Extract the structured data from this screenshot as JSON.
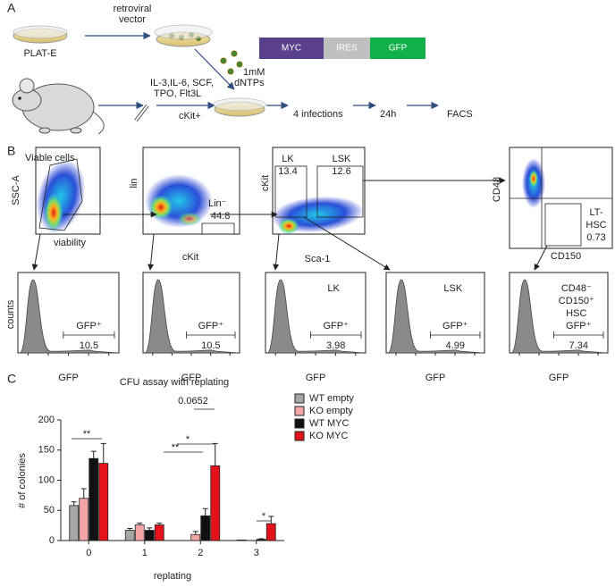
{
  "panel_a": {
    "label": "A",
    "retroviral_vector": [
      "retroviral",
      "vector"
    ],
    "plat_e": "PLAT-E",
    "construct": [
      "MYC",
      "IRES",
      "GFP"
    ],
    "dntps": [
      "1mM",
      "dNTPs"
    ],
    "cytokines": [
      "IL-3,IL-6, SCF,",
      "TPO, Flt3L"
    ],
    "ckit": "cKit+",
    "steps": [
      "4 infections",
      "24h",
      "FACS"
    ]
  },
  "panel_b": {
    "label": "B",
    "plots": [
      {
        "gate": "Viable cells",
        "y_label": "SSC-A",
        "x_label": "viability"
      },
      {
        "y_label": "lin",
        "x_label": "cKit",
        "gate": "Lin⁻",
        "value": "44.8"
      },
      {
        "y_label": "cKit",
        "x_label": "Sca-1",
        "gates": [
          {
            "name": "LK",
            "value": "13.4"
          },
          {
            "name": "LSK",
            "value": "12.6"
          }
        ]
      },
      {
        "y_label": "CD48",
        "x_label": "CD150",
        "gate": [
          "LT-",
          "HSC"
        ],
        "value": "0.73"
      }
    ],
    "histograms": {
      "y_label": "counts",
      "items": [
        {
          "x_label": "GFP",
          "gate": "GFP⁺",
          "value": "10.5"
        },
        {
          "x_label": "GFP",
          "gate": "GFP⁺",
          "value": "10.5"
        },
        {
          "title": [
            "LK"
          ],
          "x_label": "GFP",
          "gate": "GFP⁺",
          "value": "3.98"
        },
        {
          "title": [
            "LSK"
          ],
          "x_label": "GFP",
          "gate": "GFP⁺",
          "value": "4.99"
        },
        {
          "title": [
            "CD48⁻",
            "CD150⁺",
            "HSC"
          ],
          "x_label": "GFP",
          "gate": "GFP⁺",
          "value": "7.34"
        }
      ]
    }
  },
  "chart_data": {
    "type": "bar",
    "label": "C",
    "title": "CFU assay with replating",
    "x_label": "replating",
    "y_label": "# of colonies",
    "categories": [
      "0",
      "1",
      "2",
      "3"
    ],
    "series": [
      {
        "name": "WT empty",
        "color": "#a6a6a6",
        "values": [
          58,
          17,
          0,
          1
        ],
        "errors": [
          6,
          3,
          0,
          0
        ]
      },
      {
        "name": "KO empty",
        "color": "#f4a6a6",
        "values": [
          70,
          26,
          10,
          0
        ],
        "errors": [
          16,
          3,
          5,
          0
        ]
      },
      {
        "name": "WT MYC",
        "color": "#111111",
        "values": [
          136,
          17,
          41,
          2
        ],
        "errors": [
          12,
          4,
          12,
          1
        ]
      },
      {
        "name": "KO MYC",
        "color": "#e3121b",
        "values": [
          128,
          26,
          124,
          28
        ],
        "errors": [
          33,
          3,
          37,
          12
        ]
      }
    ],
    "ylim": [
      0,
      200
    ],
    "yticks": [
      0,
      50,
      100,
      150,
      200
    ],
    "annotations": [
      "**",
      "0.0652",
      "*",
      "**",
      "*"
    ]
  }
}
